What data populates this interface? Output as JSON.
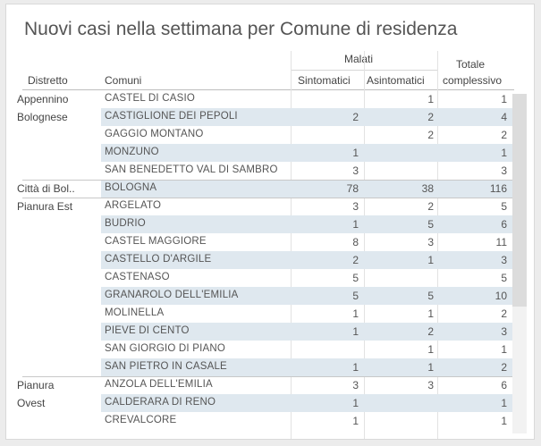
{
  "title": "Nuovi casi nella settimana per Comune di residenza",
  "headers": {
    "distretto": "Distretto",
    "comuni": "Comuni",
    "malati": "Malati",
    "sintomatici": "Sintomatici",
    "asintomatici": "Asintomatici",
    "totale_line1": "Totale",
    "totale_line2": "complessivo"
  },
  "districts": [
    {
      "lines": [
        "Appennino",
        "Bolognese"
      ],
      "start": 0
    },
    {
      "lines": [
        "Città di Bol.."
      ],
      "start": 5
    },
    {
      "lines": [
        "Pianura Est"
      ],
      "start": 6
    },
    {
      "lines": [
        "Pianura",
        "Ovest"
      ],
      "start": 16
    }
  ],
  "rows": [
    {
      "comune": "CASTEL DI CASIO",
      "sint": "",
      "asin": "1",
      "tot": "1"
    },
    {
      "comune": "CASTIGLIONE DEI PEPOLI",
      "sint": "2",
      "asin": "2",
      "tot": "4"
    },
    {
      "comune": "GAGGIO MONTANO",
      "sint": "",
      "asin": "2",
      "tot": "2"
    },
    {
      "comune": "MONZUNO",
      "sint": "1",
      "asin": "",
      "tot": "1"
    },
    {
      "comune": "SAN BENEDETTO VAL DI SAMBRO",
      "sint": "3",
      "asin": "",
      "tot": "3"
    },
    {
      "comune": "BOLOGNA",
      "sint": "78",
      "asin": "38",
      "tot": "116"
    },
    {
      "comune": "ARGELATO",
      "sint": "3",
      "asin": "2",
      "tot": "5"
    },
    {
      "comune": "BUDRIO",
      "sint": "1",
      "asin": "5",
      "tot": "6"
    },
    {
      "comune": "CASTEL MAGGIORE",
      "sint": "8",
      "asin": "3",
      "tot": "11"
    },
    {
      "comune": "CASTELLO D'ARGILE",
      "sint": "2",
      "asin": "1",
      "tot": "3"
    },
    {
      "comune": "CASTENASO",
      "sint": "5",
      "asin": "",
      "tot": "5"
    },
    {
      "comune": "GRANAROLO DELL'EMILIA",
      "sint": "5",
      "asin": "5",
      "tot": "10"
    },
    {
      "comune": "MOLINELLA",
      "sint": "1",
      "asin": "1",
      "tot": "2"
    },
    {
      "comune": "PIEVE DI CENTO",
      "sint": "1",
      "asin": "2",
      "tot": "3"
    },
    {
      "comune": "SAN GIORGIO DI PIANO",
      "sint": "",
      "asin": "1",
      "tot": "1"
    },
    {
      "comune": "SAN PIETRO IN CASALE",
      "sint": "1",
      "asin": "1",
      "tot": "2"
    },
    {
      "comune": "ANZOLA DELL'EMILIA",
      "sint": "3",
      "asin": "3",
      "tot": "6"
    },
    {
      "comune": "CALDERARA DI RENO",
      "sint": "1",
      "asin": "",
      "tot": "1"
    },
    {
      "comune": "CREVALCORE",
      "sint": "1",
      "asin": "",
      "tot": "1"
    }
  ],
  "colors": {
    "row_shade": "#dfe8ef",
    "background": "#ffffff"
  }
}
